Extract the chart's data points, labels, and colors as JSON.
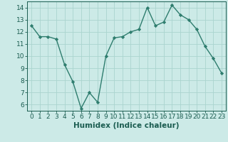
{
  "x": [
    0,
    1,
    2,
    3,
    4,
    5,
    6,
    7,
    8,
    9,
    10,
    11,
    12,
    13,
    14,
    15,
    16,
    17,
    18,
    19,
    20,
    21,
    22,
    23
  ],
  "y": [
    12.5,
    11.6,
    11.6,
    11.4,
    9.3,
    7.9,
    5.7,
    7.0,
    6.2,
    10.0,
    11.5,
    11.6,
    12.0,
    12.2,
    14.0,
    12.5,
    12.8,
    14.2,
    13.4,
    13.0,
    12.2,
    10.8,
    9.8,
    8.6
  ],
  "line_color": "#2e7d6e",
  "marker": "D",
  "marker_size": 2.2,
  "bg_color": "#cceae7",
  "grid_color": "#aad4cf",
  "xlabel": "Humidex (Indice chaleur)",
  "xlim": [
    -0.5,
    23.5
  ],
  "ylim": [
    5.5,
    14.5
  ],
  "yticks": [
    6,
    7,
    8,
    9,
    10,
    11,
    12,
    13,
    14
  ],
  "xticks": [
    0,
    1,
    2,
    3,
    4,
    5,
    6,
    7,
    8,
    9,
    10,
    11,
    12,
    13,
    14,
    15,
    16,
    17,
    18,
    19,
    20,
    21,
    22,
    23
  ],
  "xlabel_fontsize": 7.5,
  "tick_fontsize": 6.5,
  "tick_color": "#1a5c50",
  "line_width": 1.0
}
